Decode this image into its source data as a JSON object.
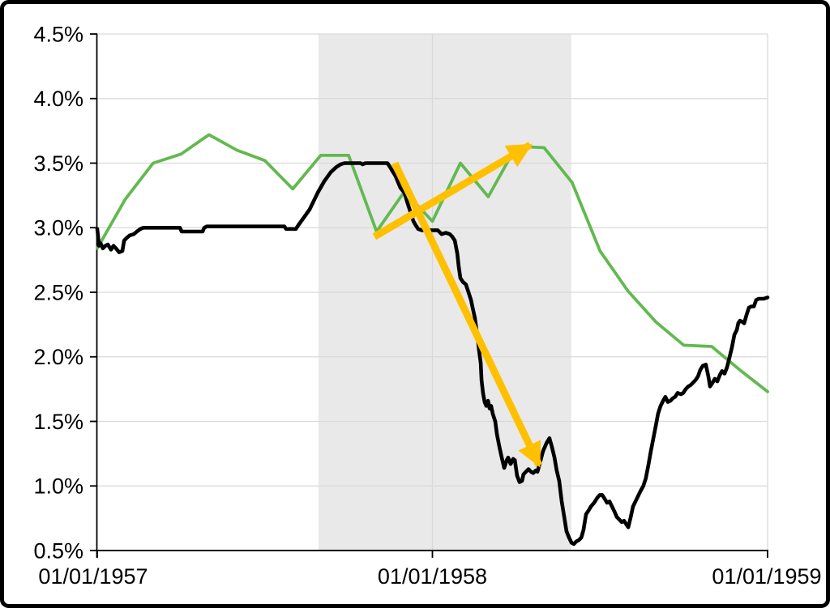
{
  "chart_data": {
    "type": "line",
    "title": "",
    "x_axis": {
      "unit": "months_since_1957_01_01",
      "range": [
        0,
        24
      ],
      "tick_labels": [
        "01/01/1957",
        "01/01/1958",
        "01/01/1959"
      ],
      "tick_months": [
        0,
        12,
        24
      ]
    },
    "y_axis": {
      "unit": "percent",
      "min": 0.5,
      "max": 4.5,
      "tick_labels": [
        "4.5%",
        "4.0%",
        "3.5%",
        "3.0%",
        "2.5%",
        "2.0%",
        "1.5%",
        "1.0%",
        "0.5%"
      ],
      "tick_values": [
        4.5,
        4.0,
        3.5,
        3.0,
        2.5,
        2.0,
        1.5,
        1.0,
        0.5
      ]
    },
    "grid_color": "#d9d9d9",
    "axis_color": "#000000",
    "background": "#ffffff",
    "shaded_region": {
      "name": "recession-band-1957-58",
      "start_month": 7.92,
      "end_month": 16.97,
      "color": "#e9e9e9"
    },
    "series": [
      {
        "name": "monthly-rate-green",
        "color": "#62b950",
        "stroke_width": 3.8,
        "points": [
          [
            0,
            2.84
          ],
          [
            1,
            3.22
          ],
          [
            2,
            3.5
          ],
          [
            3,
            3.57
          ],
          [
            4,
            3.72
          ],
          [
            5,
            3.6
          ],
          [
            6,
            3.52
          ],
          [
            7,
            3.3
          ],
          [
            8,
            3.56
          ],
          [
            9,
            3.56
          ],
          [
            10,
            2.97
          ],
          [
            11,
            3.28
          ],
          [
            12,
            3.05
          ],
          [
            13,
            3.5
          ],
          [
            14,
            3.24
          ],
          [
            15,
            3.63
          ],
          [
            16,
            3.62
          ],
          [
            17,
            3.35
          ],
          [
            18,
            2.82
          ],
          [
            19,
            2.51
          ],
          [
            20,
            2.27
          ],
          [
            21,
            2.09
          ],
          [
            22,
            2.08
          ],
          [
            23,
            1.9
          ],
          [
            24,
            1.73
          ]
        ]
      },
      {
        "name": "daily-rate-black",
        "color": "#000000",
        "stroke_width": 4.6,
        "points": [
          [
            0,
            2.99
          ],
          [
            0.03,
            2.93
          ],
          [
            0.06,
            2.86
          ],
          [
            0.12,
            2.88
          ],
          [
            0.2,
            2.84
          ],
          [
            0.29,
            2.86
          ],
          [
            0.38,
            2.87
          ],
          [
            0.49,
            2.83
          ],
          [
            0.58,
            2.86
          ],
          [
            0.67,
            2.84
          ],
          [
            0.78,
            2.81
          ],
          [
            0.9,
            2.82
          ],
          [
            0.96,
            2.9
          ],
          [
            1.05,
            2.92
          ],
          [
            1.16,
            2.94
          ],
          [
            1.31,
            2.95
          ],
          [
            1.42,
            2.97
          ],
          [
            1.54,
            2.99
          ],
          [
            1.65,
            3.0
          ],
          [
            2.96,
            3.0
          ],
          [
            3.02,
            2.97
          ],
          [
            3.77,
            2.97
          ],
          [
            3.83,
            3.0
          ],
          [
            3.92,
            3.01
          ],
          [
            6.7,
            3.01
          ],
          [
            6.76,
            2.99
          ],
          [
            7.11,
            2.99
          ],
          [
            7.2,
            3.02
          ],
          [
            7.4,
            3.08
          ],
          [
            7.6,
            3.14
          ],
          [
            7.89,
            3.27
          ],
          [
            8.13,
            3.36
          ],
          [
            8.36,
            3.43
          ],
          [
            8.56,
            3.47
          ],
          [
            8.71,
            3.49
          ],
          [
            8.85,
            3.5
          ],
          [
            9.43,
            3.5
          ],
          [
            9.5,
            3.49
          ],
          [
            9.6,
            3.5
          ],
          [
            10.39,
            3.5
          ],
          [
            10.48,
            3.47
          ],
          [
            10.68,
            3.4
          ],
          [
            10.85,
            3.31
          ],
          [
            11.0,
            3.27
          ],
          [
            11.11,
            3.19
          ],
          [
            11.23,
            3.11
          ],
          [
            11.32,
            3.05
          ],
          [
            11.4,
            3.02
          ],
          [
            11.49,
            2.99
          ],
          [
            11.61,
            2.98
          ],
          [
            11.99,
            2.98
          ],
          [
            12.19,
            2.98
          ],
          [
            12.33,
            2.95
          ],
          [
            12.48,
            2.96
          ],
          [
            12.62,
            2.95
          ],
          [
            12.71,
            2.93
          ],
          [
            12.8,
            2.9
          ],
          [
            12.89,
            2.8
          ],
          [
            12.94,
            2.7
          ],
          [
            13.0,
            2.61
          ],
          [
            13.09,
            2.58
          ],
          [
            13.2,
            2.56
          ],
          [
            13.29,
            2.5
          ],
          [
            13.38,
            2.44
          ],
          [
            13.44,
            2.38
          ],
          [
            13.52,
            2.3
          ],
          [
            13.61,
            2.16
          ],
          [
            13.67,
            2.05
          ],
          [
            13.73,
            1.95
          ],
          [
            13.76,
            1.82
          ],
          [
            13.81,
            1.72
          ],
          [
            13.87,
            1.65
          ],
          [
            13.93,
            1.62
          ],
          [
            13.99,
            1.66
          ],
          [
            14.05,
            1.6
          ],
          [
            14.1,
            1.62
          ],
          [
            14.16,
            1.56
          ],
          [
            14.25,
            1.5
          ],
          [
            14.31,
            1.4
          ],
          [
            14.39,
            1.31
          ],
          [
            14.48,
            1.22
          ],
          [
            14.57,
            1.14
          ],
          [
            14.66,
            1.2
          ],
          [
            14.71,
            1.22
          ],
          [
            14.8,
            1.17
          ],
          [
            14.89,
            1.21
          ],
          [
            14.95,
            1.2
          ],
          [
            15.03,
            1.08
          ],
          [
            15.12,
            1.03
          ],
          [
            15.21,
            1.04
          ],
          [
            15.26,
            1.09
          ],
          [
            15.35,
            1.11
          ],
          [
            15.44,
            1.13
          ],
          [
            15.53,
            1.11
          ],
          [
            15.61,
            1.1
          ],
          [
            15.7,
            1.12
          ],
          [
            15.76,
            1.11
          ],
          [
            15.85,
            1.18
          ],
          [
            15.96,
            1.27
          ],
          [
            16.08,
            1.33
          ],
          [
            16.19,
            1.37
          ],
          [
            16.28,
            1.3
          ],
          [
            16.37,
            1.22
          ],
          [
            16.45,
            1.12
          ],
          [
            16.54,
            1.04
          ],
          [
            16.63,
            0.88
          ],
          [
            16.72,
            0.76
          ],
          [
            16.8,
            0.65
          ],
          [
            16.89,
            0.6
          ],
          [
            16.98,
            0.56
          ],
          [
            17.06,
            0.55
          ],
          [
            17.15,
            0.57
          ],
          [
            17.24,
            0.58
          ],
          [
            17.33,
            0.6
          ],
          [
            17.41,
            0.66
          ],
          [
            17.5,
            0.78
          ],
          [
            17.59,
            0.81
          ],
          [
            17.67,
            0.84
          ],
          [
            17.79,
            0.87
          ],
          [
            17.91,
            0.91
          ],
          [
            17.99,
            0.93
          ],
          [
            18.08,
            0.93
          ],
          [
            18.17,
            0.9
          ],
          [
            18.25,
            0.87
          ],
          [
            18.34,
            0.88
          ],
          [
            18.43,
            0.84
          ],
          [
            18.52,
            0.8
          ],
          [
            18.6,
            0.76
          ],
          [
            18.69,
            0.74
          ],
          [
            18.78,
            0.72
          ],
          [
            18.86,
            0.73
          ],
          [
            18.95,
            0.7
          ],
          [
            19.01,
            0.68
          ],
          [
            19.1,
            0.76
          ],
          [
            19.18,
            0.84
          ],
          [
            19.27,
            0.88
          ],
          [
            19.36,
            0.92
          ],
          [
            19.45,
            0.96
          ],
          [
            19.55,
            1.0
          ],
          [
            19.64,
            1.06
          ],
          [
            19.73,
            1.16
          ],
          [
            19.82,
            1.27
          ],
          [
            19.91,
            1.37
          ],
          [
            20.0,
            1.47
          ],
          [
            20.08,
            1.56
          ],
          [
            20.17,
            1.62
          ],
          [
            20.26,
            1.66
          ],
          [
            20.34,
            1.69
          ],
          [
            20.43,
            1.65
          ],
          [
            20.52,
            1.66
          ],
          [
            20.61,
            1.68
          ],
          [
            20.69,
            1.69
          ],
          [
            20.78,
            1.72
          ],
          [
            20.9,
            1.71
          ],
          [
            20.98,
            1.72
          ],
          [
            21.07,
            1.75
          ],
          [
            21.16,
            1.77
          ],
          [
            21.24,
            1.78
          ],
          [
            21.33,
            1.8
          ],
          [
            21.42,
            1.82
          ],
          [
            21.51,
            1.85
          ],
          [
            21.59,
            1.9
          ],
          [
            21.68,
            1.93
          ],
          [
            21.79,
            1.94
          ],
          [
            21.88,
            1.85
          ],
          [
            21.94,
            1.77
          ],
          [
            22.03,
            1.8
          ],
          [
            22.11,
            1.83
          ],
          [
            22.2,
            1.81
          ],
          [
            22.29,
            1.86
          ],
          [
            22.37,
            1.89
          ],
          [
            22.46,
            1.87
          ],
          [
            22.55,
            1.92
          ],
          [
            22.63,
            1.99
          ],
          [
            22.72,
            2.07
          ],
          [
            22.81,
            2.17
          ],
          [
            22.9,
            2.21
          ],
          [
            22.95,
            2.26
          ],
          [
            23.01,
            2.28
          ],
          [
            23.1,
            2.27
          ],
          [
            23.16,
            2.26
          ],
          [
            23.24,
            2.32
          ],
          [
            23.33,
            2.38
          ],
          [
            23.42,
            2.39
          ],
          [
            23.51,
            2.39
          ],
          [
            23.59,
            2.44
          ],
          [
            23.68,
            2.45
          ],
          [
            23.86,
            2.45
          ],
          [
            24.0,
            2.46
          ]
        ]
      }
    ],
    "annotations": [
      {
        "name": "arrow-up-to-green-peak",
        "type": "arrow",
        "color": "#ffc000",
        "stroke_width": 9,
        "from": [
          9.92,
          2.93
        ],
        "to": [
          15.5,
          3.64
        ]
      },
      {
        "name": "arrow-down-to-black-trough",
        "type": "arrow",
        "color": "#ffc000",
        "stroke_width": 9,
        "from": [
          10.65,
          3.5
        ],
        "to": [
          15.82,
          1.16
        ]
      }
    ],
    "legend": null
  }
}
